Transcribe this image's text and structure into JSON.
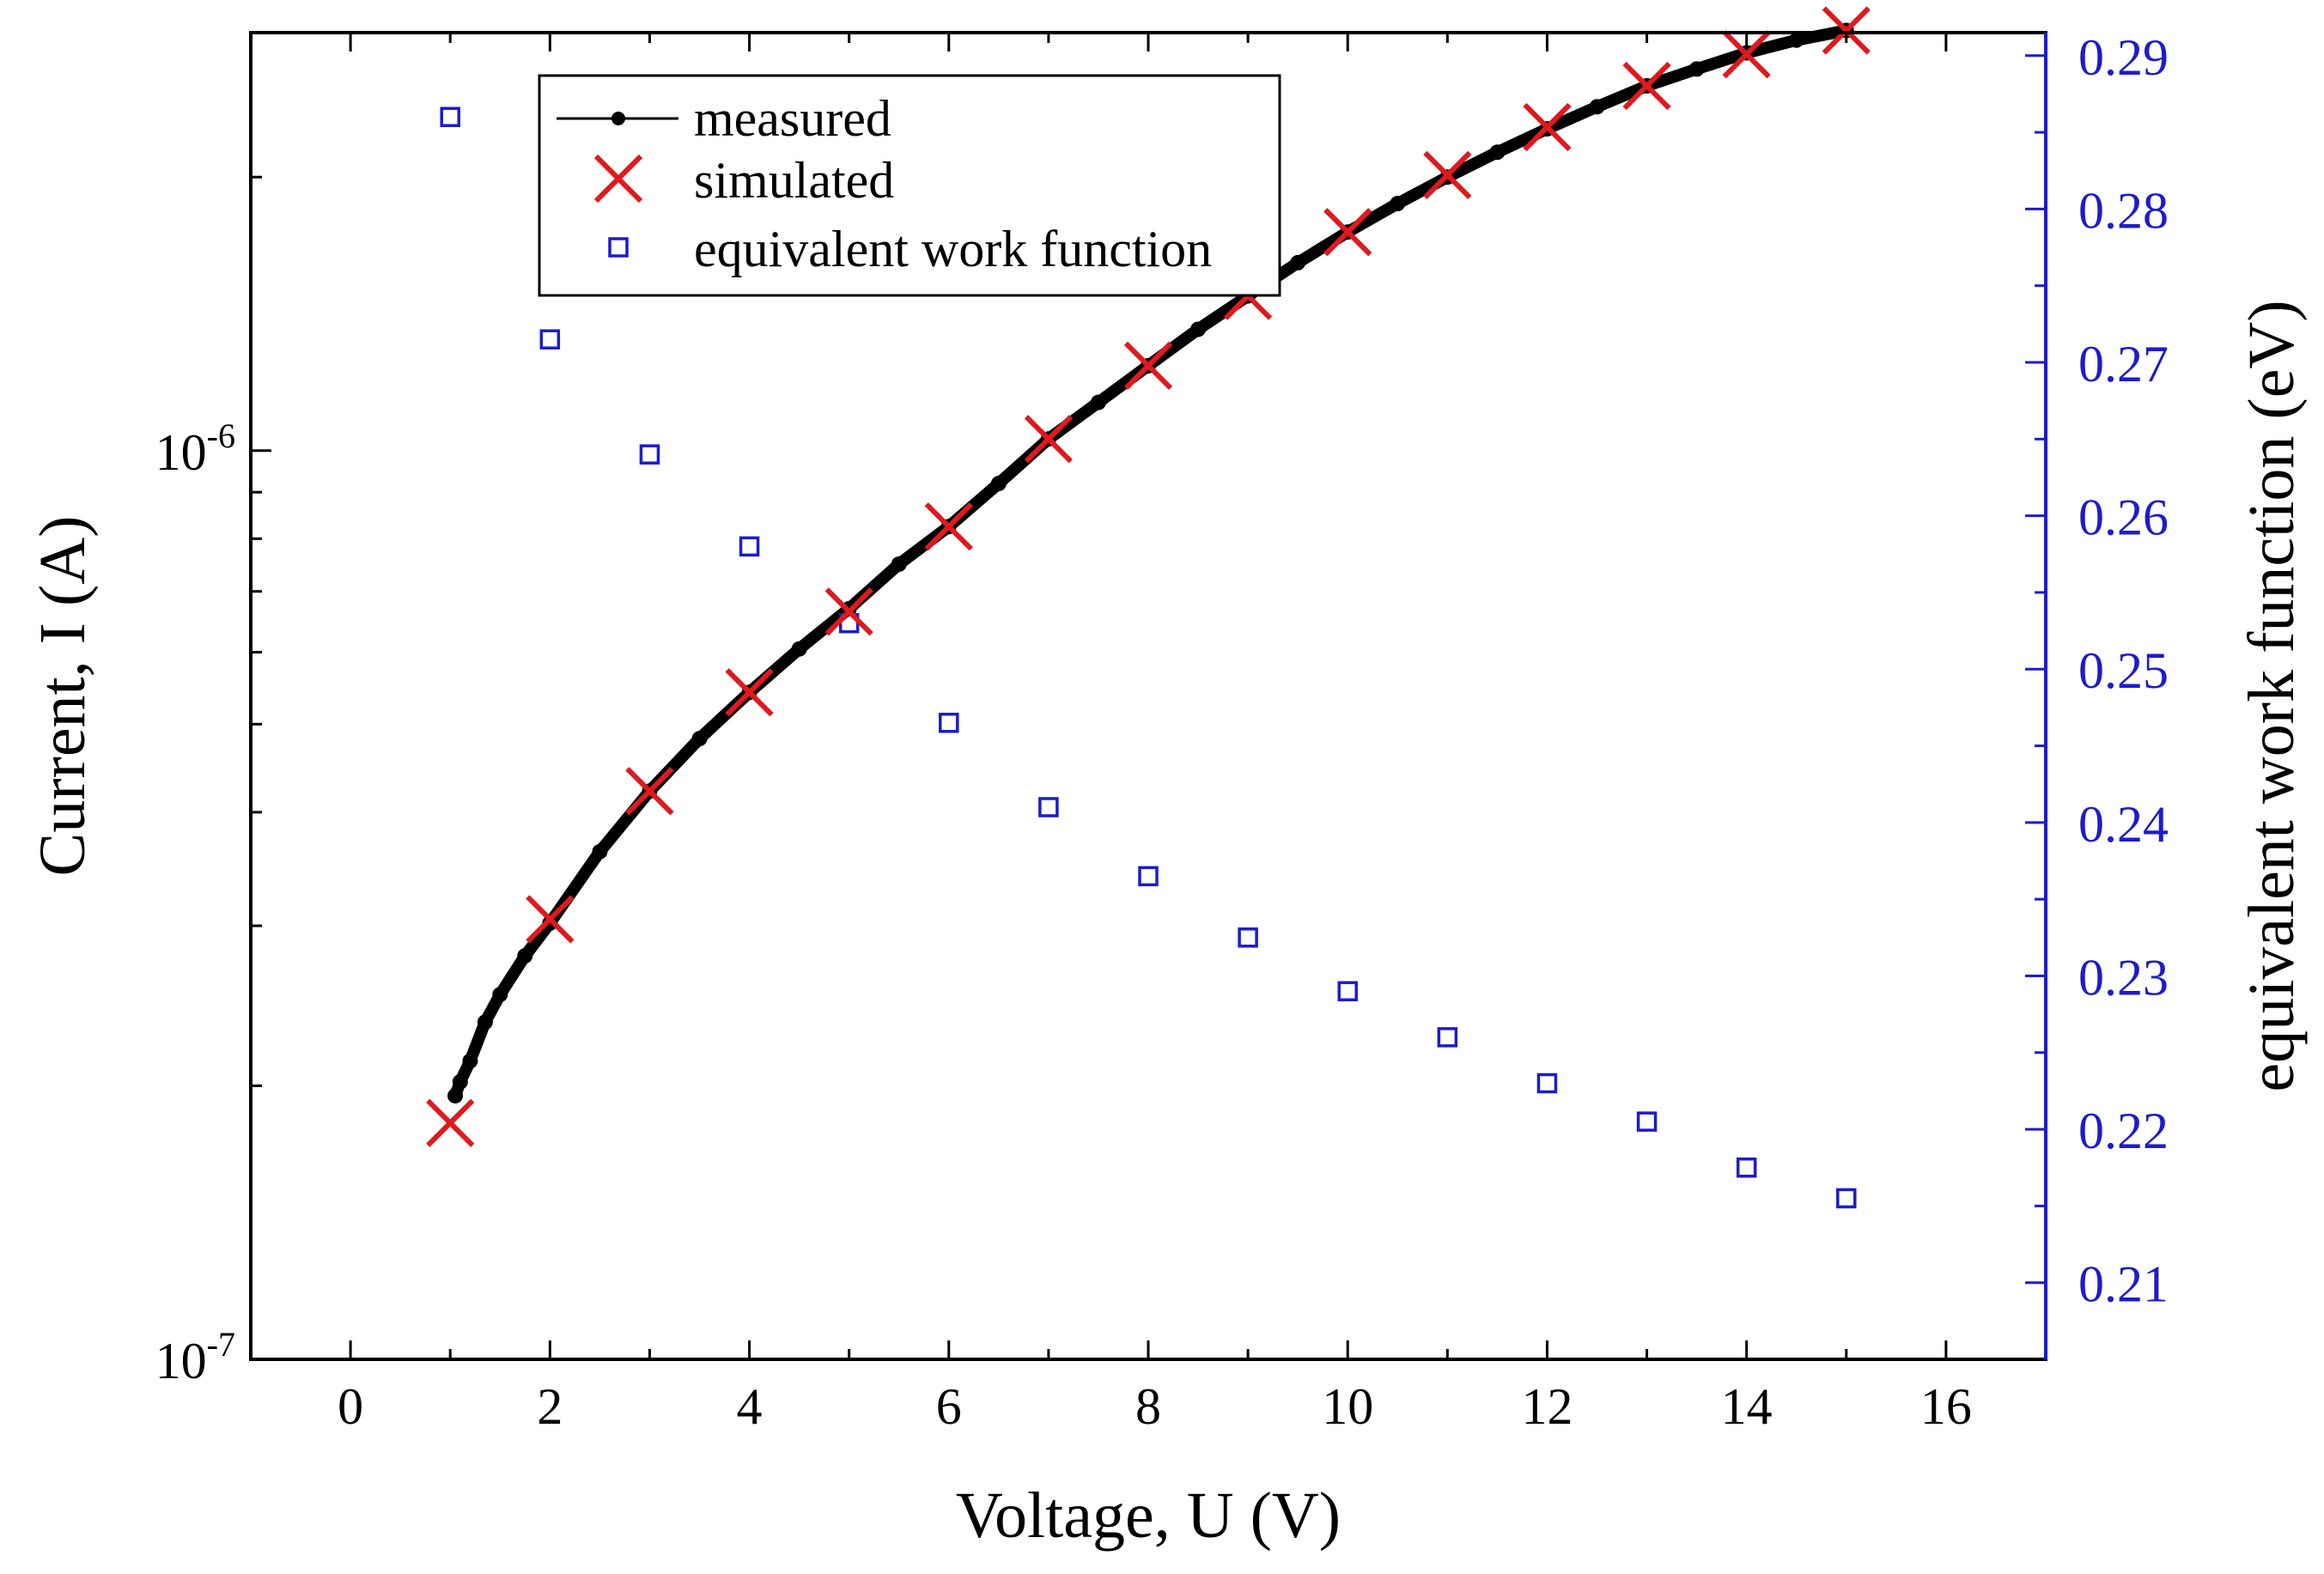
{
  "chart_data": {
    "type": "scatter",
    "title": "",
    "xlabel": "Voltage, U (V)",
    "ylabel_left": "Current, I (A)",
    "ylabel_right": "equivalent work function (eV)",
    "xlim": [
      -1,
      17
    ],
    "ylim_left_log10": [
      -7,
      -5.54
    ],
    "ylim_right": [
      0.205,
      0.2915
    ],
    "x_ticks": [
      0,
      2,
      4,
      6,
      8,
      10,
      12,
      14,
      16
    ],
    "x_tick_labels": [
      "0",
      "2",
      "4",
      "6",
      "8",
      "10",
      "12",
      "14",
      "16"
    ],
    "y_left_ticks": [
      {
        "exp": -7,
        "base": "10",
        "sup": "-7"
      },
      {
        "exp": -6,
        "base": "10",
        "sup": "-6"
      }
    ],
    "y_right_ticks": [
      0.21,
      0.22,
      0.23,
      0.24,
      0.25,
      0.26,
      0.27,
      0.28,
      0.29
    ],
    "y_right_tick_labels": [
      "0.21",
      "0.22",
      "0.23",
      "0.24",
      "0.25",
      "0.26",
      "0.27",
      "0.28",
      "0.29"
    ],
    "series": [
      {
        "name": "measured",
        "axis": "left",
        "marker": "dot-line",
        "color": "#000000",
        "x": [
          1.05,
          1.1,
          1.2,
          1.35,
          1.5,
          1.75,
          2.0,
          2.5,
          3.0,
          3.5,
          4.0,
          4.5,
          5.0,
          5.5,
          6.0,
          6.5,
          7.0,
          7.5,
          8.0,
          8.5,
          9.0,
          9.5,
          10.0,
          10.5,
          11.0,
          11.5,
          12.0,
          12.5,
          13.0,
          13.5,
          14.0,
          14.5,
          15.0
        ],
        "y": [
          1.95e-07,
          2.02e-07,
          2.13e-07,
          2.35e-07,
          2.52e-07,
          2.78e-07,
          3.02e-07,
          3.62e-07,
          4.22e-07,
          4.82e-07,
          5.42e-07,
          6.05e-07,
          6.7e-07,
          7.5e-07,
          8.25e-07,
          9.2e-07,
          1.03e-06,
          1.13e-06,
          1.24e-06,
          1.36e-06,
          1.48e-06,
          1.61e-06,
          1.74e-06,
          1.87e-06,
          2e-06,
          2.13e-06,
          2.26e-06,
          2.39e-06,
          2.52e-06,
          2.63e-06,
          2.74e-06,
          2.83e-06,
          2.9e-06
        ]
      },
      {
        "name": "simulated",
        "axis": "left",
        "marker": "x",
        "color": "#e0191d",
        "x": [
          1,
          2,
          3,
          4,
          5,
          6,
          7,
          8,
          9,
          10,
          11,
          12,
          13,
          14,
          15
        ],
        "y": [
          1.82e-07,
          3.05e-07,
          4.22e-07,
          5.42e-07,
          6.65e-07,
          8.25e-07,
          1.03e-06,
          1.24e-06,
          1.48e-06,
          1.74e-06,
          2.01e-06,
          2.27e-06,
          2.52e-06,
          2.73e-06,
          2.9e-06
        ]
      },
      {
        "name": "equivalent work function",
        "axis": "right",
        "marker": "square-open",
        "color": "#1c1ccc",
        "x": [
          1,
          2,
          3,
          4,
          5,
          6,
          7,
          8,
          9,
          10,
          11,
          12,
          13,
          14,
          15
        ],
        "y": [
          0.286,
          0.2715,
          0.264,
          0.258,
          0.253,
          0.2465,
          0.241,
          0.2365,
          0.2325,
          0.229,
          0.226,
          0.223,
          0.2205,
          0.2175,
          0.2155
        ]
      }
    ],
    "legend": {
      "position": "top-left",
      "entries": [
        "measured",
        "simulated",
        "equivalent work function"
      ]
    },
    "colors": {
      "axis": "#000000",
      "right_axis": "#1c1ccc",
      "right_tick_text": "#1c1ccc"
    }
  }
}
